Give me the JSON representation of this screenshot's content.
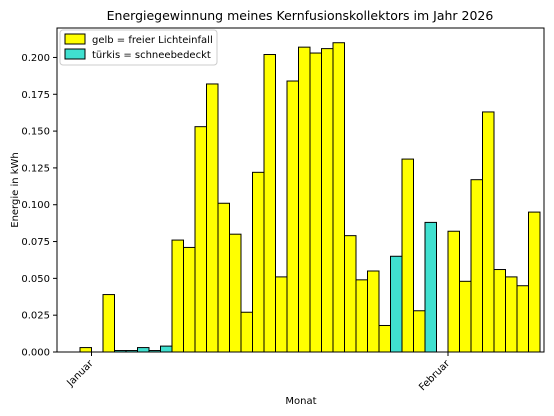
{
  "chart_data": {
    "type": "bar",
    "title": "Energiegewinnung meines Kernfusionskollektors im Jahr 2026",
    "xlabel": "Monat",
    "ylabel": "Energie in kWh",
    "ylim": [
      0,
      0.22
    ],
    "yticks": [
      "0.000",
      "0.025",
      "0.050",
      "0.075",
      "0.100",
      "0.125",
      "0.150",
      "0.175",
      "0.200"
    ],
    "xticks": [
      {
        "label": "Januar",
        "day": 1
      },
      {
        "label": "Februar",
        "day": 32
      }
    ],
    "grid": false,
    "legend_position": "upper-left",
    "colors": {
      "gelb": "#ffff00",
      "tuerkis": "#40e0d0",
      "edge": "#000000"
    },
    "series": [
      {
        "name": "gelb = freier Lichteinfall",
        "color": "#ffff00",
        "days": [
          0,
          2,
          8,
          9,
          10,
          11,
          12,
          13,
          14,
          15,
          16,
          17,
          18,
          19,
          20,
          21,
          22,
          23,
          24,
          25,
          26,
          27,
          28,
          29,
          30,
          32,
          33,
          34,
          35,
          36,
          37,
          38,
          39,
          40
        ],
        "values": [
          0.003,
          0.039,
          0.076,
          0.071,
          0.153,
          0.182,
          0.101,
          0.08,
          0.027,
          0.122,
          0.202,
          0.051,
          0.184,
          0.207,
          0.203,
          0.206,
          0.21,
          0.079,
          0.049,
          0.055,
          0.018,
          0.0,
          0.131,
          0.028,
          0.0,
          0.082,
          0.048,
          0.117,
          0.163,
          0.056,
          0.051,
          0.045,
          0.095,
          0.0
        ]
      },
      {
        "name": "türkis = schneebedeckt",
        "color": "#40e0d0",
        "days": [
          1,
          3,
          4,
          5,
          6,
          7,
          27,
          30
        ],
        "values": [
          0.0,
          0.001,
          0.001,
          0.003,
          0.001,
          0.004,
          0.065,
          0.088
        ]
      }
    ]
  }
}
